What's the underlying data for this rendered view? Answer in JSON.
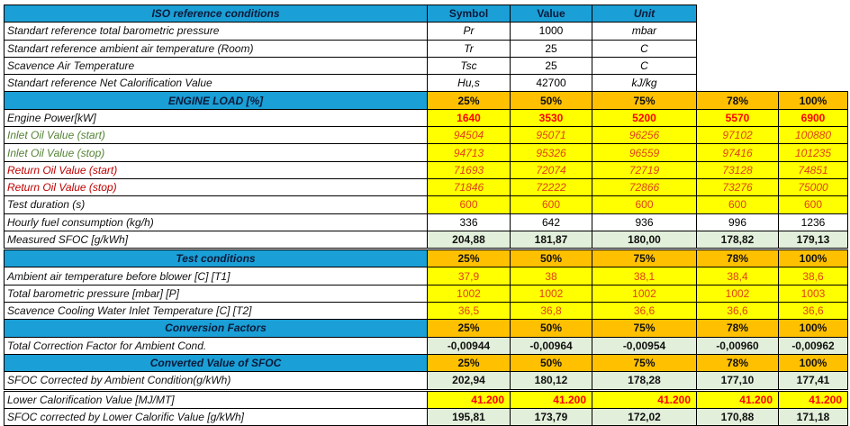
{
  "iso": {
    "header": {
      "label": "ISO reference conditions",
      "symbol": "Symbol",
      "value": "Value",
      "unit": "Unit"
    },
    "rows": [
      {
        "label": "Standart reference total barometric pressure",
        "symbol": "Pr",
        "value": "1000",
        "unit": "mbar"
      },
      {
        "label": "Standart reference ambient air temperature (Room)",
        "symbol": "Tr",
        "value": "25",
        "unit": "C"
      },
      {
        "label": "Scavence Air Temperature",
        "symbol": "Tsc",
        "value": "25",
        "unit": "C"
      },
      {
        "label": "Standart reference Net Calorification Value",
        "symbol": "Hu,s",
        "value": "42700",
        "unit": "kJ/kg"
      }
    ]
  },
  "loads": [
    "25%",
    "50%",
    "75%",
    "78%",
    "100%"
  ],
  "sections": [
    {
      "title": "ENGINE LOAD [%]",
      "rows": [
        {
          "label": "Engine Power[kW]",
          "style": "power",
          "values": [
            "1640",
            "3530",
            "5200",
            "5570",
            "6900"
          ]
        },
        {
          "label": "Inlet Oil Value (start)",
          "style": "inlet",
          "values": [
            "94504",
            "95071",
            "96256",
            "97102",
            "100880"
          ]
        },
        {
          "label": "Inlet Oil Value (stop)",
          "style": "inlet",
          "values": [
            "94713",
            "95326",
            "96559",
            "97416",
            "101235"
          ]
        },
        {
          "label": "Return Oil Value (start)",
          "style": "return",
          "values": [
            "71693",
            "72074",
            "72719",
            "73128",
            "74851"
          ]
        },
        {
          "label": "Return Oil Value (stop)",
          "style": "return",
          "values": [
            "71846",
            "72222",
            "72866",
            "73276",
            "75000"
          ]
        },
        {
          "label": "Test duration (s)",
          "style": "cond",
          "values": [
            "600",
            "600",
            "600",
            "600",
            "600"
          ]
        },
        {
          "label": "Hourly fuel consumption (kg/h)",
          "style": "plain",
          "values": [
            "336",
            "642",
            "936",
            "996",
            "1236"
          ]
        },
        {
          "label": "Measured SFOC [g/kWh]",
          "style": "green",
          "double": true,
          "values": [
            "204,88",
            "181,87",
            "180,00",
            "178,82",
            "179,13"
          ]
        }
      ]
    },
    {
      "title": "Test conditions",
      "rows": [
        {
          "label": "Ambient air temperature before blower [C]  [T1]",
          "style": "cond",
          "values": [
            "37,9",
            "38",
            "38,1",
            "38,4",
            "38,6"
          ]
        },
        {
          "label": "Total barometric pressure [mbar]  [P]",
          "style": "cond",
          "values": [
            "1002",
            "1002",
            "1002",
            "1002",
            "1003"
          ]
        },
        {
          "label": "Scavence Cooling Water Inlet  Temperature [C] [T2]",
          "style": "cond",
          "values": [
            "36,5",
            "36,8",
            "36,6",
            "36,6",
            "36,6"
          ]
        }
      ]
    },
    {
      "title": "Conversion Factors",
      "rows": [
        {
          "label": " Total Correction Factor for Ambient Cond.",
          "style": "green",
          "values": [
            "-0,00944",
            "-0,00964",
            "-0,00954",
            "-0,00960",
            "-0,00962"
          ]
        }
      ]
    },
    {
      "title": "Converted Value of SFOC",
      "rows": [
        {
          "label": "SFOC Corrected by Ambient Condition(g/kWh)",
          "style": "green",
          "double": true,
          "values": [
            "202,94",
            "180,12",
            "178,28",
            "177,10",
            "177,41"
          ]
        },
        {
          "label": "Lower Calorification Value [MJ/MT]",
          "style": "lcv",
          "values": [
            "41.200",
            "41.200",
            "41.200",
            "41.200",
            "41.200"
          ]
        },
        {
          "label": "SFOC corrected by Lower Calorific Value [g/kWh]",
          "style": "green",
          "values": [
            "195,81",
            "173,79",
            "172,02",
            "170,88",
            "171,18"
          ]
        }
      ]
    }
  ],
  "colors": {
    "header_blue": "#1a9fd6",
    "load_orange": "#ffc000",
    "input_yellow": "#ffff00",
    "result_green": "#e2efda",
    "inlet_label": "#548235",
    "return_label": "#c00000"
  }
}
